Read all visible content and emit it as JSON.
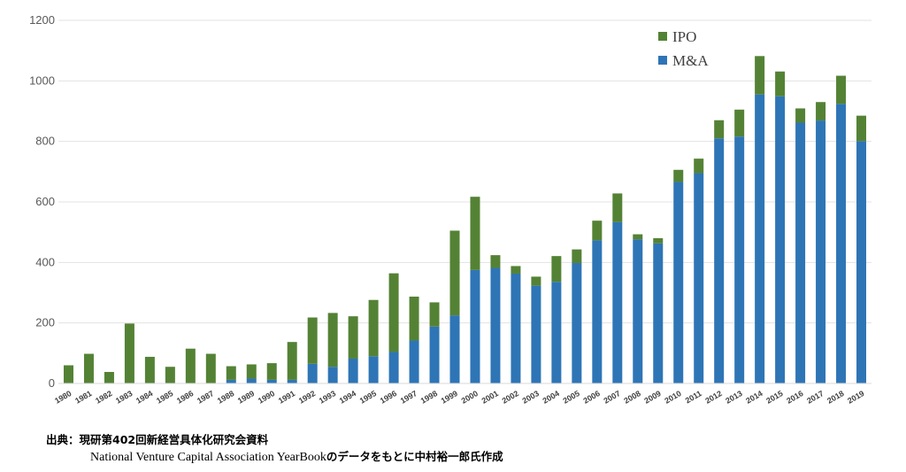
{
  "chart_data": {
    "type": "bar",
    "stacked": true,
    "categories": [
      "1980",
      "1981",
      "1982",
      "1983",
      "1984",
      "1985",
      "1986",
      "1987",
      "1988",
      "1989",
      "1990",
      "1991",
      "1992",
      "1993",
      "1994",
      "1995",
      "1996",
      "1997",
      "1998",
      "1999",
      "2000",
      "2001",
      "2002",
      "2003",
      "2004",
      "2005",
      "2006",
      "2007",
      "2008",
      "2009",
      "2010",
      "2011",
      "2012",
      "2013",
      "2014",
      "2015",
      "2016",
      "2017",
      "2018",
      "2019"
    ],
    "series": [
      {
        "name": "M&A",
        "color": "#2E75B6",
        "values": [
          0,
          0,
          0,
          0,
          0,
          0,
          0,
          0,
          12,
          16,
          12,
          12,
          65,
          55,
          82,
          90,
          104,
          142,
          188,
          225,
          375,
          382,
          363,
          323,
          336,
          398,
          473,
          533,
          476,
          463,
          666,
          695,
          810,
          816,
          955,
          949,
          862,
          869,
          924,
          801
        ]
      },
      {
        "name": "IPO",
        "color": "#548235",
        "values": [
          60,
          98,
          38,
          198,
          88,
          55,
          115,
          98,
          45,
          47,
          55,
          125,
          153,
          178,
          140,
          186,
          260,
          145,
          80,
          280,
          242,
          42,
          25,
          30,
          85,
          45,
          65,
          95,
          17,
          17,
          40,
          48,
          60,
          89,
          127,
          82,
          47,
          61,
          93,
          84
        ]
      }
    ],
    "ylim": [
      0,
      1200
    ],
    "yticks": [
      "0",
      "200",
      "400",
      "600",
      "800",
      "1000",
      "1200"
    ],
    "grid": true,
    "legend": {
      "position": "top-right",
      "entries": [
        "IPO",
        "M&A"
      ]
    },
    "title": "",
    "xlabel": "",
    "ylabel": ""
  },
  "source": {
    "line1": "出典：現研第402回新経営具体化研究会資料",
    "line2_en": "National Venture Capital Association YearBook",
    "line2_jp": "のデータをもとに中村裕一郎氏作成"
  }
}
